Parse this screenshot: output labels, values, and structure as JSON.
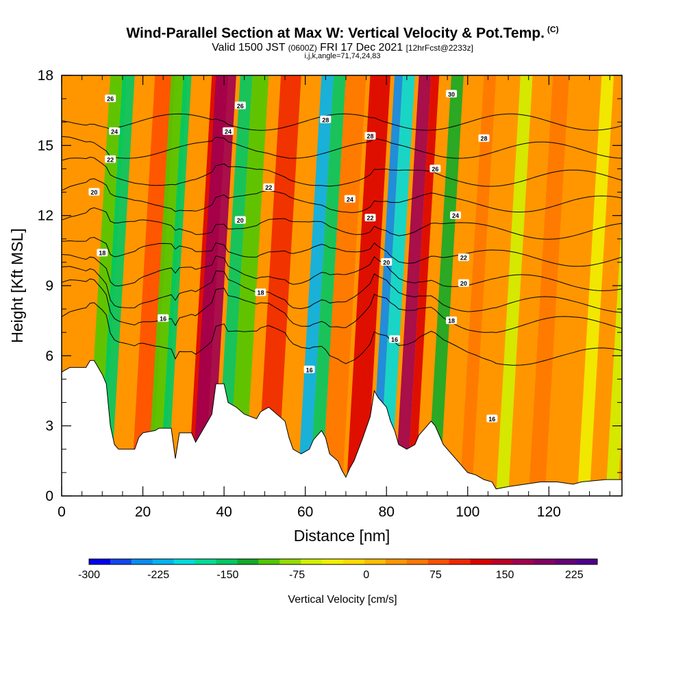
{
  "title": {
    "main": "Wind-Parallel Section at Max W: Vertical Velocity & Pot.Temp.",
    "copyright": "(C)",
    "valid_prefix": "Valid 1500 JST",
    "utc": "(0600Z)",
    "date": "FRI 17 Dec 2021",
    "forecast": "[12hrFcst@2233z]",
    "indices": "i,j,k,angle=71,74,24,83"
  },
  "chart_data": {
    "type": "heatmap",
    "xlabel": "Distance [nm]",
    "ylabel": "Height [Kft MSL]",
    "xlim": [
      0,
      138
    ],
    "ylim": [
      0,
      18
    ],
    "x_ticks": [
      "0",
      "20",
      "40",
      "60",
      "80",
      "100",
      "120"
    ],
    "y_ticks": [
      "0",
      "3",
      "6",
      "9",
      "12",
      "15",
      "18"
    ],
    "x_tick_values": [
      0,
      20,
      40,
      60,
      80,
      100,
      120
    ],
    "y_tick_values": [
      0,
      3,
      6,
      9,
      12,
      15,
      18
    ],
    "colorbar": {
      "label": "Vertical Velocity [cm/s]",
      "range": [
        -300,
        250
      ],
      "tick_labels": [
        "-300",
        "-225",
        "-150",
        "-75",
        "0",
        "75",
        "150",
        "225"
      ],
      "tick_values": [
        -300,
        -225,
        -150,
        -75,
        0,
        75,
        150,
        225
      ],
      "colors": [
        "#0000f0",
        "#0f48f0",
        "#0a8cf0",
        "#00b4f0",
        "#00dcdc",
        "#00dc96",
        "#00c864",
        "#14aa28",
        "#50c800",
        "#96dc00",
        "#d2f000",
        "#f0f000",
        "#ffdc00",
        "#ffbe00",
        "#ff9600",
        "#ff7800",
        "#ff5000",
        "#f02800",
        "#dc0000",
        "#be0028",
        "#a00050",
        "#820064",
        "#640078",
        "#50008c"
      ]
    },
    "terrain_kft": [
      [
        0,
        5.3
      ],
      [
        2,
        5.5
      ],
      [
        6,
        5.5
      ],
      [
        7,
        5.8
      ],
      [
        8,
        5.8
      ],
      [
        9,
        5.5
      ],
      [
        10,
        5.2
      ],
      [
        11,
        4.8
      ],
      [
        12,
        3.0
      ],
      [
        13,
        2.2
      ],
      [
        14,
        2.0
      ],
      [
        18,
        2.0
      ],
      [
        19,
        2.5
      ],
      [
        20,
        2.7
      ],
      [
        23,
        2.8
      ],
      [
        24,
        2.9
      ],
      [
        27,
        2.9
      ],
      [
        28,
        1.6
      ],
      [
        29,
        2.7
      ],
      [
        32,
        2.7
      ],
      [
        33,
        2.3
      ],
      [
        35,
        2.9
      ],
      [
        37,
        3.5
      ],
      [
        38,
        4.8
      ],
      [
        40,
        4.8
      ],
      [
        41,
        4.0
      ],
      [
        43,
        3.8
      ],
      [
        45,
        3.5
      ],
      [
        48,
        3.3
      ],
      [
        49,
        3.6
      ],
      [
        51,
        3.8
      ],
      [
        53,
        3.5
      ],
      [
        55,
        3.2
      ],
      [
        56,
        2.5
      ],
      [
        57,
        2.0
      ],
      [
        59,
        1.8
      ],
      [
        61,
        2.0
      ],
      [
        62,
        2.4
      ],
      [
        64,
        2.8
      ],
      [
        65,
        2.5
      ],
      [
        66,
        1.8
      ],
      [
        68,
        1.5
      ],
      [
        69,
        1.1
      ],
      [
        70,
        0.8
      ],
      [
        71,
        1.2
      ],
      [
        72,
        1.5
      ],
      [
        74,
        2.4
      ],
      [
        76,
        3.4
      ],
      [
        77,
        4.5
      ],
      [
        78,
        4.2
      ],
      [
        80,
        3.8
      ],
      [
        81,
        3.2
      ],
      [
        82,
        2.8
      ],
      [
        83,
        2.2
      ],
      [
        85,
        2.0
      ],
      [
        87,
        2.2
      ],
      [
        88,
        2.6
      ],
      [
        90,
        3.0
      ],
      [
        91,
        3.2
      ],
      [
        92,
        3.0
      ],
      [
        94,
        2.2
      ],
      [
        96,
        1.8
      ],
      [
        98,
        1.4
      ],
      [
        100,
        1.0
      ],
      [
        102,
        0.9
      ],
      [
        104,
        0.7
      ],
      [
        106,
        0.6
      ],
      [
        107,
        0.3
      ],
      [
        110,
        0.4
      ],
      [
        118,
        0.6
      ],
      [
        122,
        0.6
      ],
      [
        126,
        0.5
      ],
      [
        128,
        0.6
      ],
      [
        134,
        0.7
      ],
      [
        138,
        0.7
      ]
    ],
    "w_bands": [
      {
        "x0": 7,
        "x1": 11,
        "w": -110
      },
      {
        "x0": 10,
        "x1": 13,
        "w": -140
      },
      {
        "x0": 14,
        "x1": 20,
        "w": 40
      },
      {
        "x0": 18,
        "x1": 23,
        "w": 70
      },
      {
        "x0": 22,
        "x1": 26,
        "w": -100
      },
      {
        "x0": 25,
        "x1": 27,
        "w": -160
      },
      {
        "x0": 32,
        "x1": 36,
        "w": 130
      },
      {
        "x0": 33,
        "x1": 38,
        "w": 160
      },
      {
        "x0": 39,
        "x1": 42,
        "w": -150
      },
      {
        "x0": 42,
        "x1": 46,
        "w": -100
      },
      {
        "x0": 49,
        "x1": 54,
        "w": 100
      },
      {
        "x0": 59,
        "x1": 62,
        "w": -210
      },
      {
        "x0": 62,
        "x1": 65,
        "w": -160
      },
      {
        "x0": 65,
        "x1": 70,
        "w": 50
      },
      {
        "x0": 71,
        "x1": 76,
        "w": 120
      },
      {
        "x0": 77,
        "x1": 79,
        "w": -250
      },
      {
        "x0": 79,
        "x1": 82,
        "w": -200
      },
      {
        "x0": 83,
        "x1": 86,
        "w": 160
      },
      {
        "x0": 86,
        "x1": 88,
        "w": 130
      },
      {
        "x0": 91,
        "x1": 94,
        "w": -120
      },
      {
        "x0": 99,
        "x1": 102,
        "w": 60
      },
      {
        "x0": 108,
        "x1": 111,
        "w": -60
      },
      {
        "x0": 116,
        "x1": 120,
        "w": 60
      },
      {
        "x0": 128,
        "x1": 131,
        "w": -40
      },
      {
        "x0": 135,
        "x1": 138,
        "w": -60
      }
    ],
    "theta_levels": [
      {
        "base": 6.3,
        "label": "16"
      },
      {
        "base": 7.6,
        "label": "16"
      },
      {
        "base": 8.4,
        "label": "18"
      },
      {
        "base": 9.3,
        "label": "20"
      },
      {
        "base": 10.3,
        "label": "22"
      },
      {
        "base": 11.4,
        "label": "24"
      },
      {
        "base": 12.5,
        "label": "26"
      },
      {
        "base": 13.6,
        "label": "28"
      },
      {
        "base": 14.8,
        "label": "30"
      },
      {
        "base": 16.0,
        "label": "30"
      }
    ],
    "contour_labels": [
      {
        "x": 12,
        "y": 17.0,
        "text": "26"
      },
      {
        "x": 13,
        "y": 15.6,
        "text": "24"
      },
      {
        "x": 12,
        "y": 14.4,
        "text": "22"
      },
      {
        "x": 8,
        "y": 13.0,
        "text": "20"
      },
      {
        "x": 10,
        "y": 10.4,
        "text": "18"
      },
      {
        "x": 25,
        "y": 7.6,
        "text": "16"
      },
      {
        "x": 44,
        "y": 16.7,
        "text": "26"
      },
      {
        "x": 41,
        "y": 15.6,
        "text": "24"
      },
      {
        "x": 44,
        "y": 11.8,
        "text": "20"
      },
      {
        "x": 49,
        "y": 8.7,
        "text": "18"
      },
      {
        "x": 51,
        "y": 13.2,
        "text": "22"
      },
      {
        "x": 65,
        "y": 16.1,
        "text": "28"
      },
      {
        "x": 71,
        "y": 12.7,
        "text": "24"
      },
      {
        "x": 76,
        "y": 11.9,
        "text": "22"
      },
      {
        "x": 76,
        "y": 15.4,
        "text": "28"
      },
      {
        "x": 61,
        "y": 5.4,
        "text": "16"
      },
      {
        "x": 80,
        "y": 10.0,
        "text": "20"
      },
      {
        "x": 82,
        "y": 6.7,
        "text": "16"
      },
      {
        "x": 92,
        "y": 14.0,
        "text": "26"
      },
      {
        "x": 96,
        "y": 17.2,
        "text": "30"
      },
      {
        "x": 104,
        "y": 15.3,
        "text": "28"
      },
      {
        "x": 97,
        "y": 12.0,
        "text": "24"
      },
      {
        "x": 99,
        "y": 10.2,
        "text": "22"
      },
      {
        "x": 99,
        "y": 9.1,
        "text": "20"
      },
      {
        "x": 96,
        "y": 7.5,
        "text": "18"
      },
      {
        "x": 106,
        "y": 3.3,
        "text": "16"
      }
    ]
  }
}
